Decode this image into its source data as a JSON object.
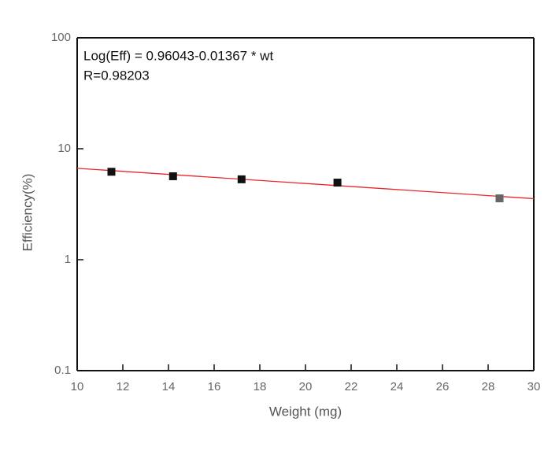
{
  "chart_data": {
    "type": "scatter",
    "annotation": [
      "Log(Eff) = 0.96043-0.01367 * wt",
      "R=0.98203"
    ],
    "xlabel": "Weight (mg)",
    "ylabel": "Efficiency(%)",
    "x": [
      11.5,
      14.2,
      17.2,
      21.4,
      28.5
    ],
    "values": [
      6.2,
      5.65,
      5.3,
      4.95,
      3.57
    ],
    "colors": [
      "#111111",
      "#111111",
      "#111111",
      "#111111",
      "#666666"
    ],
    "fit": {
      "x": [
        10,
        30
      ],
      "values": [
        6.66,
        3.55
      ],
      "color": "#e8262b"
    },
    "xlim": [
      10,
      30
    ],
    "xticks": [
      10,
      12,
      14,
      16,
      18,
      20,
      22,
      24,
      26,
      28,
      30
    ],
    "ylim": [
      0.1,
      100
    ],
    "yticks": [
      0.1,
      1,
      10,
      100
    ],
    "log_y": true
  }
}
